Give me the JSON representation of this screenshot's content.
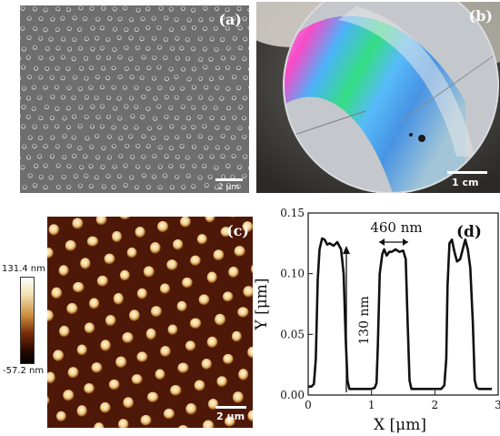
{
  "panel_a": {
    "label": "(a)",
    "scalebar": "2 μm"
  },
  "panel_b": {
    "label": "(b)",
    "scalebar": "1 cm"
  },
  "panel_c": {
    "label": "(c)",
    "scalebar": "2 μm",
    "colorbar_max": "131.4 nm",
    "colorbar_min": "-57.2 nm"
  },
  "chart_data": {
    "type": "line",
    "label": "(d)",
    "xlabel": "X [μm]",
    "ylabel": "Y [μm]",
    "xlim": [
      0,
      3
    ],
    "ylim": [
      0,
      0.15
    ],
    "xticks": [
      "0",
      "1",
      "2",
      "3"
    ],
    "yticks": [
      "0.00",
      "0.05",
      "0.10",
      "0.15"
    ],
    "annotations": {
      "width": "460 nm",
      "height": "130 nm"
    },
    "series": [
      {
        "x": [
          0,
          0.05,
          0.09,
          0.12,
          0.15,
          0.18,
          0.22,
          0.26,
          0.3,
          0.34,
          0.4,
          0.46,
          0.52,
          0.56,
          0.59,
          0.62,
          0.65,
          0.7,
          0.8,
          0.9,
          1.0,
          1.05,
          1.08,
          1.1,
          1.13,
          1.17,
          1.2,
          1.24,
          1.28,
          1.32,
          1.38,
          1.44,
          1.5,
          1.54,
          1.57,
          1.6,
          1.63,
          1.7,
          1.8,
          1.9,
          2.0,
          2.1,
          2.15,
          2.18,
          2.2,
          2.23,
          2.27,
          2.31,
          2.35,
          2.4,
          2.44,
          2.48,
          2.52,
          2.56,
          2.6,
          2.63,
          2.66,
          2.7,
          2.8,
          2.9
        ],
        "y": [
          0.007,
          0.007,
          0.009,
          0.03,
          0.095,
          0.12,
          0.129,
          0.128,
          0.124,
          0.125,
          0.123,
          0.126,
          0.12,
          0.1,
          0.05,
          0.012,
          0.005,
          0.005,
          0.005,
          0.005,
          0.005,
          0.006,
          0.01,
          0.04,
          0.1,
          0.116,
          0.12,
          0.115,
          0.118,
          0.118,
          0.12,
          0.118,
          0.119,
          0.112,
          0.06,
          0.012,
          0.005,
          0.005,
          0.005,
          0.005,
          0.005,
          0.005,
          0.008,
          0.03,
          0.09,
          0.125,
          0.128,
          0.118,
          0.11,
          0.112,
          0.12,
          0.128,
          0.12,
          0.105,
          0.06,
          0.012,
          0.006,
          0.005,
          0.005,
          0.005
        ]
      }
    ]
  }
}
